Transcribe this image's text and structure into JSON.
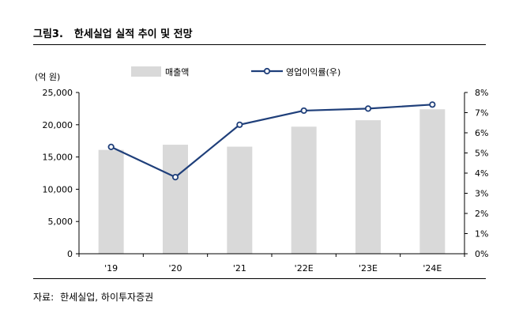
{
  "header": {
    "figure_label": "그림3.",
    "title": "한세실업 실적 추이 및 전망"
  },
  "footer": {
    "source_label": "자료:",
    "source_text": "한세실업, 하이투자증권"
  },
  "chart_data": {
    "type": "bar+line",
    "categories": [
      "'19",
      "'20",
      "'21",
      "'22E",
      "'23E",
      "'24E"
    ],
    "left_axis": {
      "unit_label": "(억 원)",
      "range": [
        0,
        25000
      ],
      "ticks": [
        0,
        5000,
        10000,
        15000,
        20000,
        25000
      ],
      "tick_labels": [
        "0",
        "5,000",
        "10,000",
        "15,000",
        "20,000",
        "25,000"
      ]
    },
    "right_axis": {
      "range": [
        0,
        8
      ],
      "ticks": [
        0,
        1,
        2,
        3,
        4,
        5,
        6,
        7,
        8
      ],
      "tick_labels": [
        "0%",
        "1%",
        "2%",
        "3%",
        "4%",
        "5%",
        "6%",
        "7%",
        "8%"
      ]
    },
    "series": [
      {
        "name": "매출액",
        "kind": "bar",
        "axis": "left",
        "color": "#d9d9d9",
        "values": [
          16100,
          16900,
          16600,
          19700,
          20700,
          22400
        ]
      },
      {
        "name": "영업이익률(우)",
        "kind": "line",
        "axis": "right",
        "color": "#1f3f7a",
        "values": [
          5.3,
          3.8,
          6.4,
          7.1,
          7.2,
          7.4
        ]
      }
    ],
    "legend_position": "top-center",
    "grid": false
  }
}
